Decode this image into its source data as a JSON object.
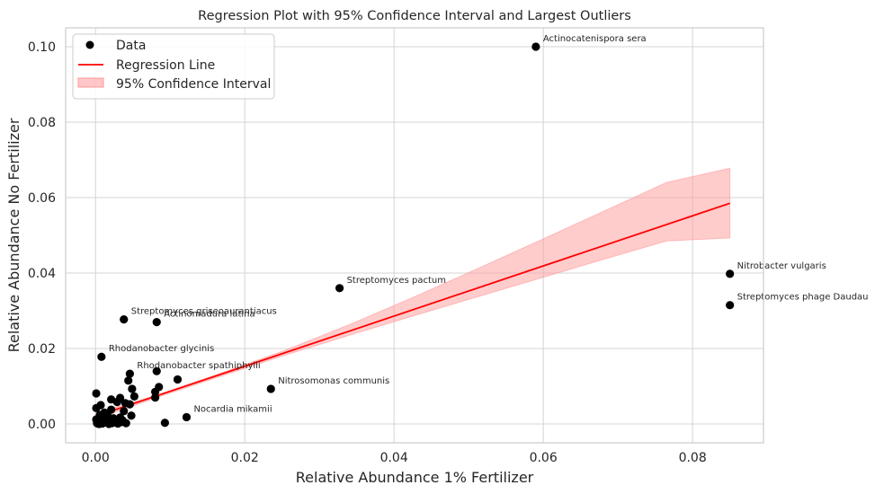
{
  "chart_data": {
    "type": "scatter",
    "title": "Regression Plot with 95% Confidence Interval and Largest Outliers",
    "xlabel": "Relative Abundance 1% Fertilizer",
    "ylabel": "Relative Abundance No Fertilizer",
    "xlim": [
      -0.004,
      0.0895
    ],
    "ylim": [
      -0.005,
      0.105
    ],
    "xticks": [
      0.0,
      0.02,
      0.04,
      0.06,
      0.08
    ],
    "xtick_labels": [
      "0.00",
      "0.02",
      "0.04",
      "0.06",
      "0.08"
    ],
    "yticks": [
      0.0,
      0.02,
      0.04,
      0.06,
      0.08,
      0.1
    ],
    "ytick_labels": [
      "0.00",
      "0.02",
      "0.04",
      "0.06",
      "0.08",
      "0.10"
    ],
    "grid": true,
    "legend_position": "top-left",
    "legend": [
      {
        "label": "Data",
        "kind": "marker",
        "color": "#000000"
      },
      {
        "label": "Regression Line",
        "kind": "line",
        "color": "#ff0000"
      },
      {
        "label": "95% Confidence Interval",
        "kind": "patch",
        "color": "#ff9999"
      }
    ],
    "series": [
      {
        "name": "Data",
        "kind": "scatter",
        "color": "#000000",
        "points": [
          [
            0.059,
            0.1
          ],
          [
            0.085,
            0.0398
          ],
          [
            0.085,
            0.0315
          ],
          [
            0.0327,
            0.036
          ],
          [
            0.0038,
            0.0277
          ],
          [
            0.0082,
            0.027
          ],
          [
            0.0008,
            0.0178
          ],
          [
            0.0082,
            0.014
          ],
          [
            0.0235,
            0.0093
          ],
          [
            0.0122,
            0.0018
          ],
          [
            0.0093,
            0.0003
          ],
          [
            0.011,
            0.0118
          ],
          [
            0.0046,
            0.0133
          ],
          [
            0.0044,
            0.0115
          ],
          [
            0.0049,
            0.0093
          ],
          [
            0.0052,
            0.0073
          ],
          [
            0.0085,
            0.0098
          ],
          [
            0.008,
            0.0085
          ],
          [
            0.008,
            0.007
          ],
          [
            0.0001,
            0.0081
          ],
          [
            0.0021,
            0.0065
          ],
          [
            0.0033,
            0.0069
          ],
          [
            0.004,
            0.0055
          ],
          [
            0.0046,
            0.0052
          ],
          [
            0.0001,
            0.0042
          ],
          [
            0.0007,
            0.005
          ],
          [
            0.0021,
            0.0038
          ],
          [
            0.0038,
            0.0034
          ],
          [
            0.0048,
            0.0022
          ],
          [
            0.0041,
            0.0002
          ],
          [
            0.0033,
            0.0017
          ],
          [
            0.0025,
            0.0008
          ],
          [
            0.0016,
            0.0022
          ],
          [
            0.0011,
            0.0017
          ],
          [
            0.0007,
            0.001
          ],
          [
            0.0003,
            0.0006
          ],
          [
            0.0001,
            0.0012
          ],
          [
            0.0002,
            0.0002
          ],
          [
            0.0005,
            0.0
          ],
          [
            0.0009,
            0.0001
          ],
          [
            0.0014,
            0.0004
          ],
          [
            0.0018,
            0.0
          ],
          [
            0.0022,
            0.0002
          ],
          [
            0.0027,
            0.0004
          ],
          [
            0.003,
            0.0001
          ],
          [
            0.0035,
            0.0005
          ],
          [
            0.0012,
            0.003
          ],
          [
            0.0006,
            0.0024
          ],
          [
            0.0029,
            0.0058
          ],
          [
            0.0017,
            0.0009
          ],
          [
            0.0024,
            0.0015
          ],
          [
            0.001,
            0.0005
          ],
          [
            0.0004,
            0.0015
          ],
          [
            0.0036,
            0.001
          ],
          [
            0.0003,
            0.0001
          ]
        ]
      },
      {
        "name": "Regression Line",
        "kind": "line",
        "color": "#ff0000",
        "x": [
          0.0,
          0.085
        ],
        "y": [
          0.002,
          0.0585
        ]
      },
      {
        "name": "95% Confidence Interval",
        "kind": "band",
        "color": "#ff9999",
        "x": [
          0.0,
          0.0085,
          0.017,
          0.0255,
          0.034,
          0.0425,
          0.051,
          0.0595,
          0.068,
          0.0765,
          0.085
        ],
        "lower": [
          0.0012,
          0.0072,
          0.0128,
          0.0183,
          0.0235,
          0.0286,
          0.0336,
          0.0386,
          0.0436,
          0.0485,
          0.0493
        ],
        "upper": [
          0.0028,
          0.0078,
          0.0136,
          0.0196,
          0.0263,
          0.0335,
          0.041,
          0.0486,
          0.0563,
          0.064,
          0.0678
        ]
      }
    ],
    "annotations": [
      {
        "text": "Actinocatenispora sera",
        "x": 0.059,
        "y": 0.1
      },
      {
        "text": "Nitrobacter vulgaris",
        "x": 0.085,
        "y": 0.0398
      },
      {
        "text": "Streptomyces phage Daudau",
        "x": 0.085,
        "y": 0.0315
      },
      {
        "text": "Streptomyces pactum",
        "x": 0.0327,
        "y": 0.036
      },
      {
        "text": "Streptomyces griseoaurantiacus",
        "x": 0.0038,
        "y": 0.0277
      },
      {
        "text": "Actinomadura latina",
        "x": 0.0082,
        "y": 0.027
      },
      {
        "text": "Rhodanobacter glycinis",
        "x": 0.0008,
        "y": 0.0178
      },
      {
        "text": "Rhodanobacter spathiphylli",
        "x": 0.0046,
        "y": 0.0133
      },
      {
        "text": "Nitrosomonas communis",
        "x": 0.0235,
        "y": 0.0093
      },
      {
        "text": "Nocardia mikamii",
        "x": 0.0122,
        "y": 0.0018
      }
    ]
  }
}
